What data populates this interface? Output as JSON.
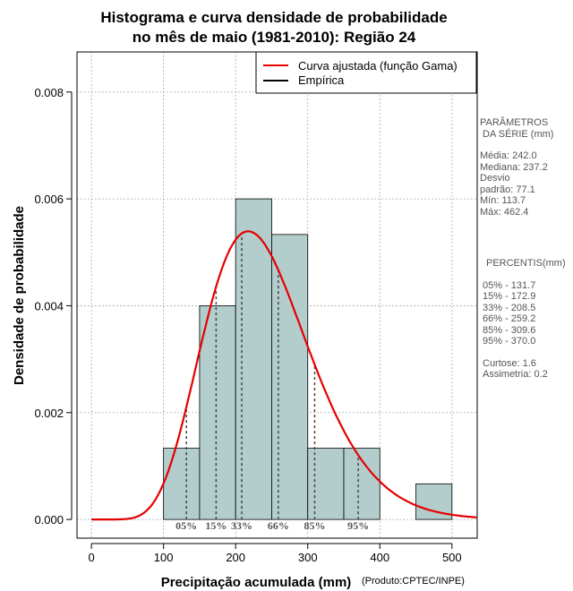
{
  "chart_data": {
    "type": "histogram",
    "title_line1": "Histograma e curva densidade de probabilidade",
    "title_line2": "no mês de maio (1981-2010): Região 24",
    "xlabel": "Precipitação acumulada (mm)",
    "ylabel": "Densidade de probabilidade",
    "credit": "(Produto:CPTEC/INPE)",
    "xlim": [
      -20,
      535
    ],
    "ylim": [
      -0.00035,
      0.00875
    ],
    "x_ticks": [
      0,
      100,
      200,
      300,
      400,
      500
    ],
    "x_tick_labels": [
      "0",
      "100",
      "200",
      "300",
      "400",
      "500"
    ],
    "y_ticks": [
      0,
      0.002,
      0.004,
      0.006,
      0.008
    ],
    "y_tick_labels": [
      "0.000",
      "0.002",
      "0.004",
      "0.006",
      "0.008"
    ],
    "grid": true,
    "bins": [
      {
        "start": 100,
        "end": 150,
        "density": 0.001333
      },
      {
        "start": 150,
        "end": 200,
        "density": 0.004
      },
      {
        "start": 200,
        "end": 250,
        "density": 0.006
      },
      {
        "start": 250,
        "end": 300,
        "density": 0.005333
      },
      {
        "start": 300,
        "end": 350,
        "density": 0.001333
      },
      {
        "start": 350,
        "end": 400,
        "density": 0.001333
      },
      {
        "start": 400,
        "end": 450,
        "density": 0
      },
      {
        "start": 450,
        "end": 500,
        "density": 0.000667
      }
    ],
    "gamma_fit": {
      "shape": 9.8,
      "scale": 24.7,
      "label": "Curva ajustada (função Gama)",
      "color": "#e60000"
    },
    "empirical": {
      "label": "Empírica",
      "color": "#000000"
    },
    "bar_color": "#b3cccc",
    "legend_position": "top-right",
    "percentiles": [
      {
        "label": "05%",
        "value": 131.7
      },
      {
        "label": "15%",
        "value": 172.9
      },
      {
        "label": "33%",
        "value": 208.5
      },
      {
        "label": "66%",
        "value": 259.2
      },
      {
        "label": "85%",
        "value": 309.6
      },
      {
        "label": "95%",
        "value": 370.0
      }
    ]
  },
  "stats_panel": {
    "heading1": "PARÂMETROS",
    "heading2": "DA SÉRIE (mm)",
    "media": "Média:  242.0",
    "mediana": "Mediana:  237.2",
    "desvio1": "Desvio",
    "desvio2": "padrão:  77.1",
    "min": "Mín:  113.7",
    "max": "Máx:  462.4",
    "percentis_heading": "PERCENTIS(mm)",
    "p05": "05% -  131.7",
    "p15": "15% -  172.9",
    "p33": "33% -  208.5",
    "p66": "66% -  259.2",
    "p85": "85% -  309.6",
    "p95": "95% -  370.0",
    "curtose": "Curtose:  1.6",
    "assimetria": "Assimetria:  0.2"
  }
}
